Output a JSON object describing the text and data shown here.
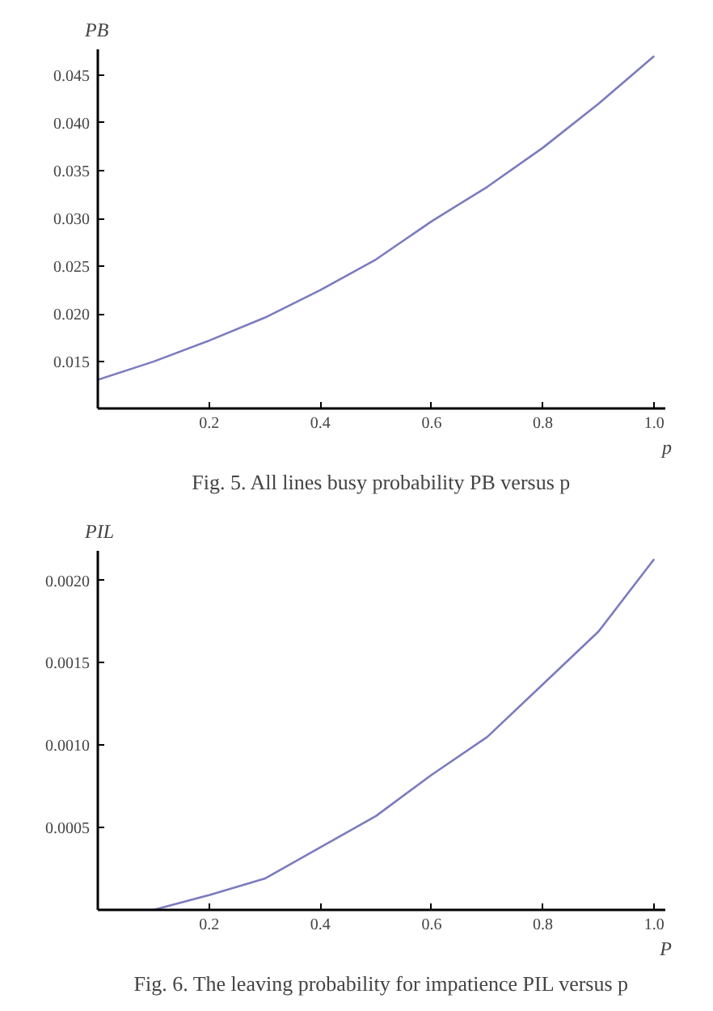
{
  "chart_data": [
    {
      "type": "line",
      "title": "Fig. 5. All lines busy probability PB versus p",
      "xlabel": "p",
      "ylabel": "PB",
      "x": [
        0,
        0.1,
        0.2,
        0.3,
        0.4,
        0.5,
        0.6,
        0.7,
        0.8,
        0.9,
        1.0
      ],
      "series": [
        {
          "color": "#7b7bbf",
          "values": [
            0.0131,
            0.015,
            0.0172,
            0.0196,
            0.0225,
            0.0257,
            0.0297,
            0.0333,
            0.0374,
            0.042,
            0.047
          ]
        }
      ],
      "xlim": [
        0,
        1.02
      ],
      "ylim": [
        0.0101,
        0.0477
      ],
      "xticks": [
        0.2,
        0.4,
        0.6,
        0.8,
        {
          "value": 1,
          "label": "1.0"
        }
      ],
      "yticks": [
        0.015,
        {
          "value": 0.02,
          "label": "0.020"
        },
        0.025,
        {
          "value": 0.03,
          "label": "0.030"
        },
        0.035,
        {
          "value": 0.04,
          "label": "0.040"
        },
        0.045
      ],
      "grid": false,
      "marker": "none",
      "line_style": "solid"
    },
    {
      "type": "line",
      "title": "Fig. 6. The leaving probability for impatience PIL versus p",
      "xlabel": "P",
      "ylabel": "PIL",
      "x": [
        0,
        0.1,
        0.2,
        0.3,
        0.4,
        0.5,
        0.6,
        0.7,
        0.8,
        0.9,
        1.0
      ],
      "series": [
        {
          "color": "#7b7bbf",
          "values": [
            0,
            0,
            9e-05,
            0.00019,
            0.00038,
            0.00057,
            0.00082,
            0.00105,
            0.00137,
            0.00169,
            0.00213
          ]
        }
      ],
      "xlim": [
        0,
        1.02
      ],
      "ylim": [
        0,
        0.00218
      ],
      "xticks": [
        0.2,
        0.4,
        0.6,
        0.8,
        {
          "value": 1,
          "label": "1.0"
        }
      ],
      "yticks": [
        0.0005,
        {
          "value": 0.001,
          "label": "0.0010"
        },
        0.0015,
        {
          "value": 0.002,
          "label": "0.0020"
        }
      ],
      "grid": false,
      "marker": "none",
      "line_style": "solid"
    }
  ]
}
